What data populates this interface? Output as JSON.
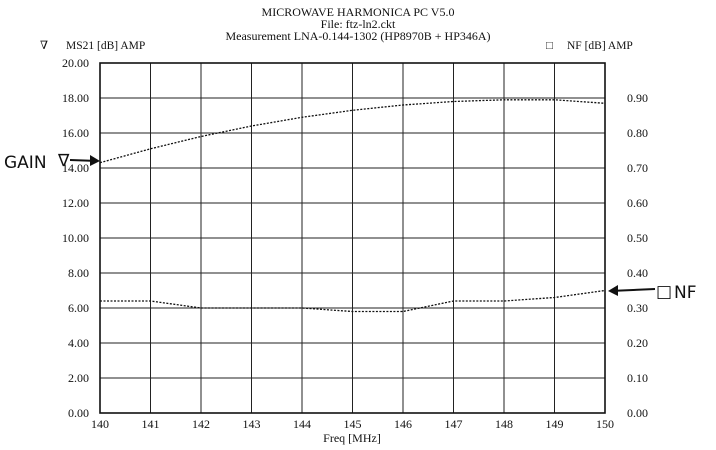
{
  "chart_data": {
    "type": "line",
    "title_lines": [
      "MICROWAVE HARMONICA PC V5.0",
      "File: ftz-ln2.ckt",
      "Measurement LNA-0.144-1302 (HP8970B + HP346A)"
    ],
    "xlabel": "Freq [MHz]",
    "xlim": [
      140,
      150
    ],
    "x_ticks": [
      "140",
      "141",
      "142",
      "143",
      "144",
      "145",
      "146",
      "147",
      "148",
      "149",
      "150"
    ],
    "y_left_label": "MS21 [dB] AMP",
    "y_left_symbol": "∇",
    "ylim_left": [
      0,
      20
    ],
    "y_left_ticks": [
      "0.00",
      "2.00",
      "4.00",
      "6.00",
      "8.00",
      "10.00",
      "12.00",
      "14.00",
      "16.00",
      "18.00",
      "20.00"
    ],
    "y_right_label": "NF [dB] AMP",
    "y_right_symbol": "□",
    "ylim_right": [
      0,
      1
    ],
    "y_right_ticks": [
      "0.00",
      "0.10",
      "0.20",
      "0.30",
      "0.40",
      "0.50",
      "0.60",
      "0.70",
      "0.80",
      "0.90",
      ""
    ],
    "grid": true,
    "series": [
      {
        "name": "MS21 [dB] AMP",
        "axis": "left",
        "x": [
          140,
          141,
          142,
          143,
          144,
          145,
          146,
          147,
          148,
          149,
          150
        ],
        "values": [
          14.3,
          15.1,
          15.8,
          16.4,
          16.9,
          17.3,
          17.6,
          17.8,
          17.9,
          17.9,
          17.7
        ]
      },
      {
        "name": "NF [dB] AMP",
        "axis": "right",
        "x": [
          140,
          141,
          142,
          143,
          144,
          145,
          146,
          147,
          148,
          149,
          150
        ],
        "values": [
          0.32,
          0.32,
          0.3,
          0.3,
          0.3,
          0.29,
          0.29,
          0.32,
          0.32,
          0.33,
          0.35
        ]
      }
    ],
    "annotations": {
      "gain": {
        "text": "GAIN",
        "symbol": "∇"
      },
      "nf": {
        "text": "NF",
        "symbol": "□"
      }
    },
    "colors": {
      "ink": "#111111",
      "grid": "#222222"
    }
  }
}
